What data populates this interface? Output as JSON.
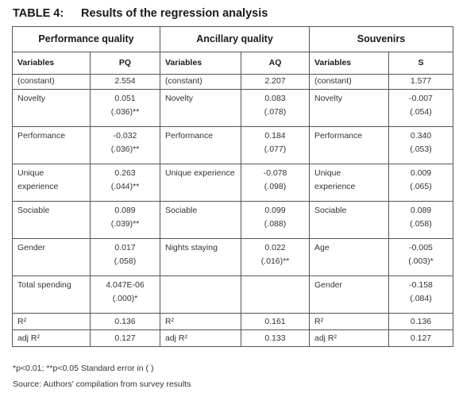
{
  "title": {
    "label": "TABLE 4:",
    "text": "Results of the regression analysis"
  },
  "groups": [
    "Performance quality",
    "Ancillary quality",
    "Souvenirs"
  ],
  "header": [
    {
      "var": "Variables",
      "coef": "PQ"
    },
    {
      "var": "Variables",
      "coef": "AQ"
    },
    {
      "var": "Variables",
      "coef": "S"
    }
  ],
  "rows": [
    {
      "cells": [
        {
          "var": "(constant)",
          "val": "2.554",
          "se": ""
        },
        {
          "var": "(constant)",
          "val": "2.207",
          "se": ""
        },
        {
          "var": "(constant)",
          "val": "1.577",
          "se": ""
        }
      ]
    },
    {
      "cells": [
        {
          "var": "Novelty",
          "val": "0.051",
          "se": "(.036)**"
        },
        {
          "var": "Novelty",
          "val": "0.083",
          "se": "(.078)"
        },
        {
          "var": "Novelty",
          "val": "-0.007",
          "se": "(.054)"
        }
      ]
    },
    {
      "cells": [
        {
          "var": "Performance",
          "val": "-0.032",
          "se": "(.036)**"
        },
        {
          "var": "Performance",
          "val": "0.184",
          "se": "(.077)"
        },
        {
          "var": "Performance",
          "val": "0.340",
          "se": "(.053)"
        }
      ]
    },
    {
      "cells": [
        {
          "var": "Unique experience",
          "val": "0.263",
          "se": "(.044)**"
        },
        {
          "var": "Unique experience",
          "val": "-0.078",
          "se": "(.098)"
        },
        {
          "var": "Unique experience",
          "val": "0.009",
          "se": "(.065)"
        }
      ]
    },
    {
      "cells": [
        {
          "var": "Sociable",
          "val": "0.089",
          "se": "(.039)**"
        },
        {
          "var": "Sociable",
          "val": "0.099",
          "se": "(.088)"
        },
        {
          "var": "Sociable",
          "val": "0.089",
          "se": "(.058)"
        }
      ]
    },
    {
      "cells": [
        {
          "var": "Gender",
          "val": "0.017",
          "se": "(.058)"
        },
        {
          "var": "Nights staying",
          "val": "0.022",
          "se": "(.016)**"
        },
        {
          "var": "Age",
          "val": "-0.005",
          "se": "(.003)*"
        }
      ]
    },
    {
      "cells": [
        {
          "var": "Total spending",
          "val": "4.047E-06",
          "se": "(.000)*"
        },
        {
          "var": "",
          "val": "",
          "se": ""
        },
        {
          "var": "Gender",
          "val": "-0.158",
          "se": "(.084)"
        }
      ]
    },
    {
      "cells": [
        {
          "var": "R²",
          "val": "0.136",
          "se": ""
        },
        {
          "var": "R²",
          "val": "0.161",
          "se": ""
        },
        {
          "var": "R²",
          "val": "0.136",
          "se": ""
        }
      ]
    },
    {
      "cells": [
        {
          "var": "adj R²",
          "val": "0.127",
          "se": ""
        },
        {
          "var": "adj R²",
          "val": "0.133",
          "se": ""
        },
        {
          "var": "adj R²",
          "val": "0.127",
          "se": ""
        }
      ]
    }
  ],
  "footnote": "*p<0.01; **p<0.05 Standard error in ( )",
  "source": "Source: Authors' compilation from survey results"
}
